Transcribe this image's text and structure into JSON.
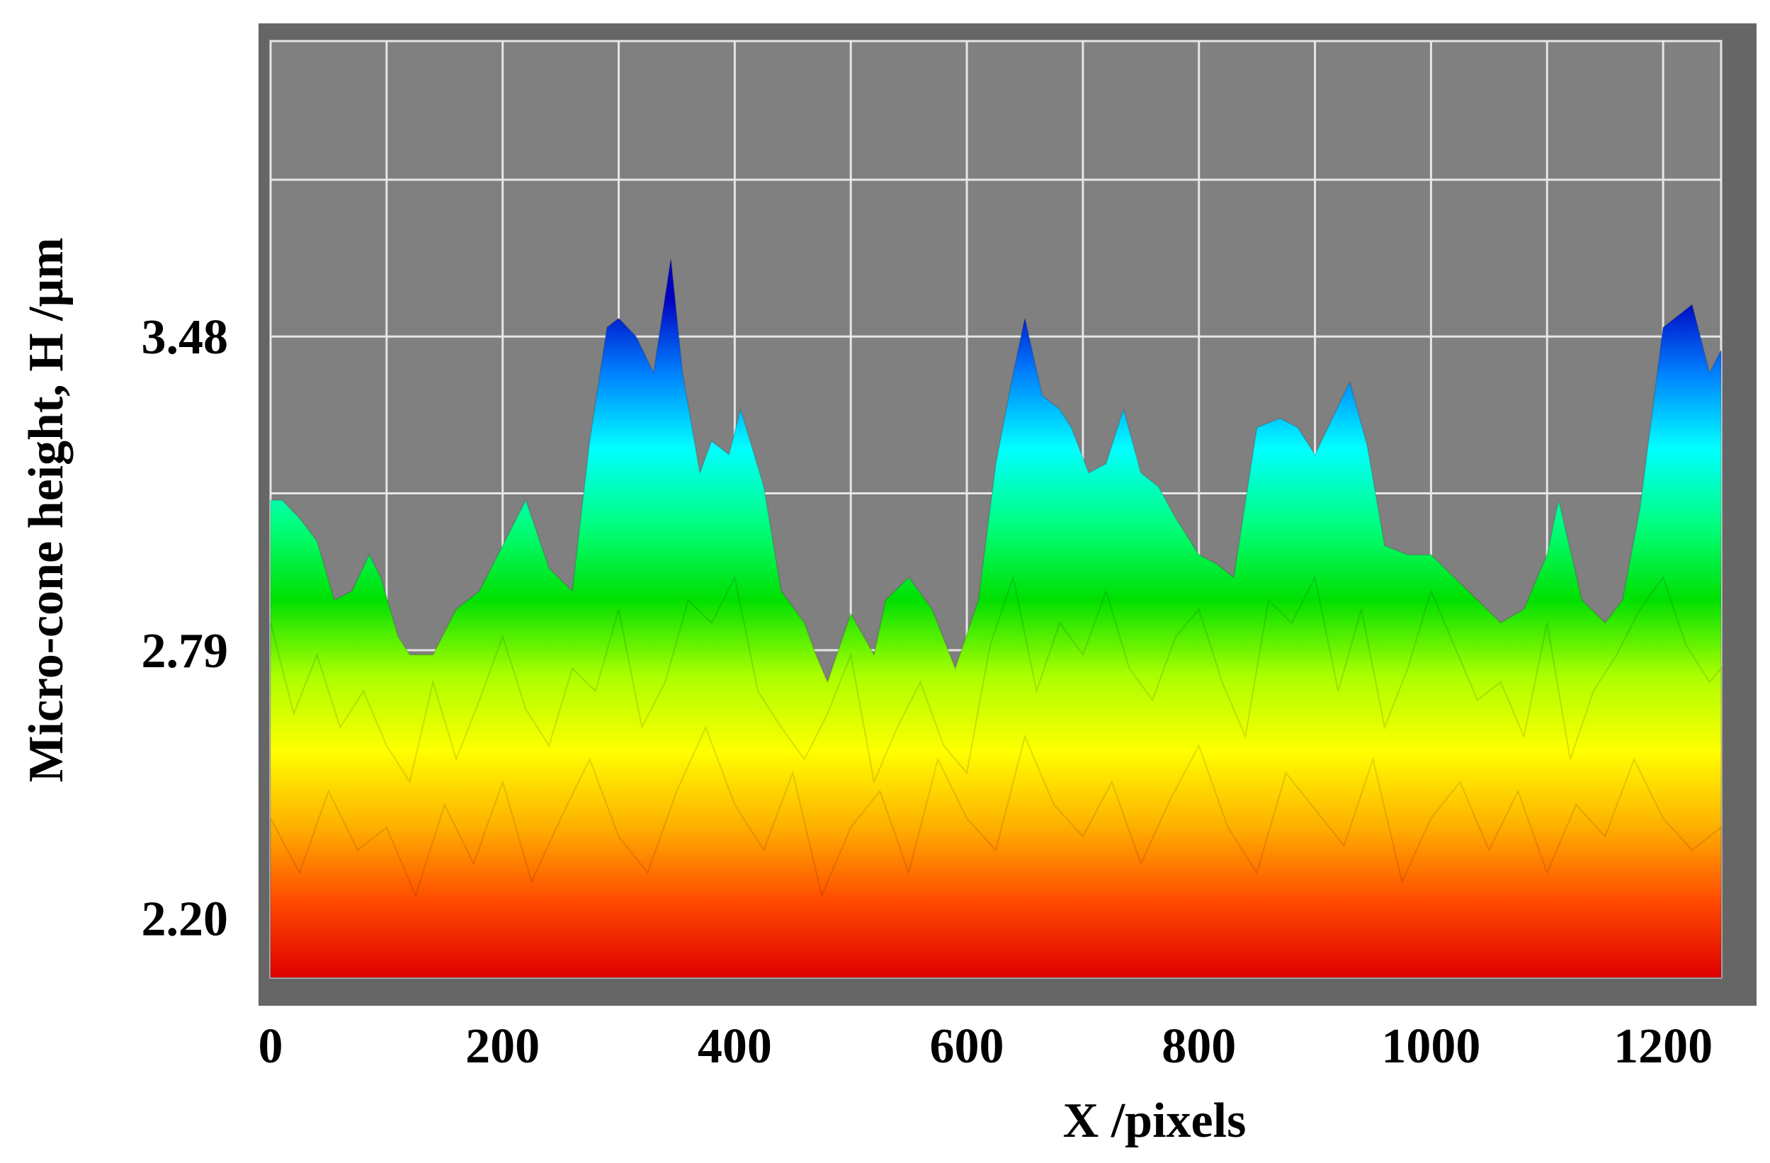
{
  "chart_data": {
    "type": "area",
    "title": "",
    "xlabel": "X /pixels",
    "ylabel": "Micro-cone height, H /μm",
    "xlim": [
      0,
      1250
    ],
    "ylim": [
      2.07,
      4.13
    ],
    "x_ticks": [
      0,
      200,
      400,
      600,
      800,
      1000,
      1200
    ],
    "y_ticks": [
      2.2,
      2.79,
      3.48
    ],
    "y_tick_labels": [
      "2.20",
      "2.79",
      "3.48"
    ],
    "grid": true,
    "legend": "none",
    "colormap": [
      "#e00000",
      "#ff4a00",
      "#ffb000",
      "#ffff00",
      "#aaff00",
      "#00e000",
      "#00ff80",
      "#00ffff",
      "#0080ff",
      "#0000c0"
    ],
    "plot_background": "#808080",
    "series": [
      {
        "x": [
          0,
          10,
          25,
          40,
          55,
          70,
          85,
          95,
          110,
          120,
          140,
          160,
          180,
          200,
          220,
          240,
          260,
          275,
          290,
          300,
          315,
          330,
          345,
          355,
          370,
          380,
          395,
          405,
          425,
          440,
          460,
          470,
          480,
          500,
          520,
          530,
          550,
          570,
          590,
          610,
          625,
          640,
          650,
          665,
          680,
          690,
          705,
          720,
          735,
          750,
          765,
          780,
          800,
          815,
          830,
          850,
          870,
          885,
          900,
          915,
          930,
          945,
          960,
          980,
          1000,
          1020,
          1040,
          1060,
          1080,
          1100,
          1110,
          1130,
          1150,
          1165,
          1180,
          1190,
          1200,
          1210,
          1225,
          1240,
          1250
        ],
        "y": [
          3.12,
          3.12,
          3.08,
          3.03,
          2.9,
          2.92,
          3.0,
          2.95,
          2.82,
          2.78,
          2.78,
          2.88,
          2.92,
          3.02,
          3.12,
          2.97,
          2.92,
          3.25,
          3.5,
          3.52,
          3.48,
          3.4,
          3.65,
          3.4,
          3.18,
          3.25,
          3.22,
          3.32,
          3.15,
          2.92,
          2.85,
          2.78,
          2.72,
          2.87,
          2.78,
          2.9,
          2.95,
          2.88,
          2.75,
          2.9,
          3.2,
          3.4,
          3.52,
          3.35,
          3.32,
          3.28,
          3.18,
          3.2,
          3.32,
          3.18,
          3.15,
          3.08,
          3.0,
          2.98,
          2.95,
          3.28,
          3.3,
          3.28,
          3.22,
          3.3,
          3.38,
          3.24,
          3.02,
          3.0,
          3.0,
          2.95,
          2.9,
          2.85,
          2.88,
          3.0,
          3.12,
          2.9,
          2.85,
          2.9,
          3.1,
          3.3,
          3.5,
          3.52,
          3.55,
          3.4,
          3.45
        ]
      },
      {
        "x": [
          0,
          20,
          40,
          60,
          80,
          100,
          120,
          140,
          160,
          180,
          200,
          220,
          240,
          260,
          280,
          300,
          320,
          340,
          360,
          380,
          400,
          420,
          440,
          460,
          480,
          500,
          520,
          540,
          560,
          580,
          600,
          620,
          640,
          660,
          680,
          700,
          720,
          740,
          760,
          780,
          800,
          820,
          840,
          860,
          880,
          900,
          920,
          940,
          960,
          980,
          1000,
          1020,
          1040,
          1060,
          1080,
          1100,
          1120,
          1140,
          1160,
          1180,
          1200,
          1220,
          1240,
          1250
        ],
        "y": [
          2.85,
          2.65,
          2.78,
          2.62,
          2.7,
          2.58,
          2.5,
          2.72,
          2.55,
          2.68,
          2.82,
          2.66,
          2.58,
          2.75,
          2.7,
          2.88,
          2.62,
          2.72,
          2.9,
          2.85,
          2.95,
          2.7,
          2.62,
          2.55,
          2.65,
          2.78,
          2.5,
          2.62,
          2.72,
          2.58,
          2.52,
          2.8,
          2.95,
          2.7,
          2.85,
          2.78,
          2.92,
          2.75,
          2.68,
          2.82,
          2.88,
          2.72,
          2.6,
          2.9,
          2.85,
          2.95,
          2.7,
          2.88,
          2.62,
          2.75,
          2.92,
          2.8,
          2.68,
          2.72,
          2.6,
          2.85,
          2.55,
          2.7,
          2.78,
          2.88,
          2.95,
          2.8,
          2.72,
          2.75
        ]
      },
      {
        "x": [
          0,
          25,
          50,
          75,
          100,
          125,
          150,
          175,
          200,
          225,
          250,
          275,
          300,
          325,
          350,
          375,
          400,
          425,
          450,
          475,
          500,
          525,
          550,
          575,
          600,
          625,
          650,
          675,
          700,
          725,
          750,
          775,
          800,
          825,
          850,
          875,
          900,
          925,
          950,
          975,
          1000,
          1025,
          1050,
          1075,
          1100,
          1125,
          1150,
          1175,
          1200,
          1225,
          1250
        ],
        "y": [
          2.42,
          2.3,
          2.48,
          2.35,
          2.4,
          2.25,
          2.45,
          2.32,
          2.5,
          2.28,
          2.42,
          2.55,
          2.38,
          2.3,
          2.48,
          2.62,
          2.45,
          2.35,
          2.52,
          2.25,
          2.4,
          2.48,
          2.3,
          2.55,
          2.42,
          2.35,
          2.6,
          2.45,
          2.38,
          2.5,
          2.32,
          2.46,
          2.58,
          2.4,
          2.3,
          2.52,
          2.44,
          2.36,
          2.55,
          2.28,
          2.42,
          2.5,
          2.35,
          2.48,
          2.3,
          2.45,
          2.38,
          2.55,
          2.42,
          2.35,
          2.4
        ]
      }
    ]
  }
}
